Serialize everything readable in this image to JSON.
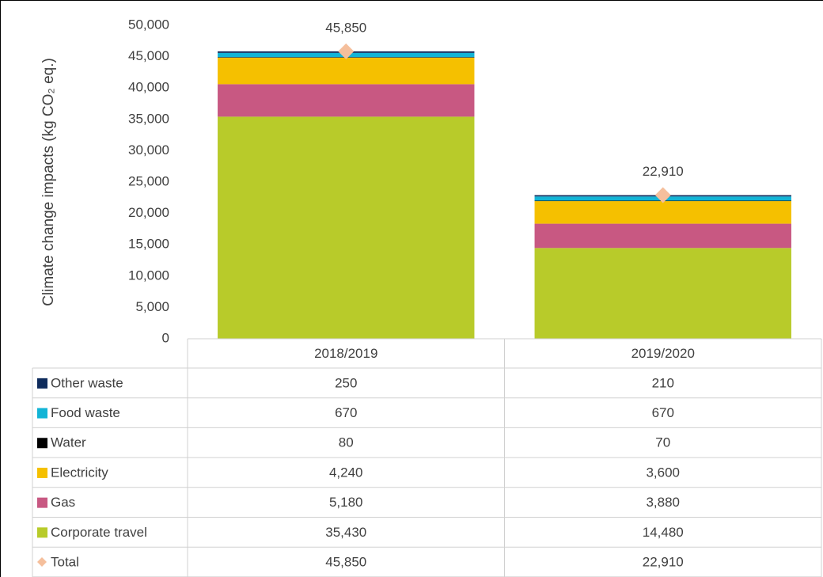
{
  "chart_data": {
    "type": "bar",
    "stacked": true,
    "ylabel": "Climate change impacts (kg CO₂ eq.)",
    "categories": [
      "2018/2019",
      "2019/2020"
    ],
    "series": [
      {
        "name": "Corporate travel",
        "color": "#b8cb2a",
        "values": [
          35430,
          14480
        ],
        "value_labels": [
          "35,430",
          "14,480"
        ]
      },
      {
        "name": "Gas",
        "color": "#c85882",
        "values": [
          5180,
          3880
        ],
        "value_labels": [
          "5,180",
          "3,880"
        ]
      },
      {
        "name": "Electricity",
        "color": "#f5c000",
        "values": [
          4240,
          3600
        ],
        "value_labels": [
          "4,240",
          "3,600"
        ]
      },
      {
        "name": "Water",
        "color": "#000000",
        "values": [
          80,
          70
        ],
        "value_labels": [
          "80",
          "70"
        ]
      },
      {
        "name": "Food waste",
        "color": "#12b4d6",
        "values": [
          670,
          670
        ],
        "value_labels": [
          "670",
          "670"
        ]
      },
      {
        "name": "Other waste",
        "color": "#0e2b5c",
        "values": [
          250,
          210
        ],
        "value_labels": [
          "250",
          "210"
        ]
      }
    ],
    "total": {
      "name": "Total",
      "color": "#f5bf9c",
      "values": [
        45850,
        22910
      ],
      "value_labels": [
        "45,850",
        "22,910"
      ]
    },
    "ylim": [
      0,
      50000
    ],
    "yticks": [
      0,
      {
        "value": 5000,
        "label": "5,000"
      },
      {
        "value": 10000,
        "label": "10,000"
      },
      {
        "value": 15000,
        "label": "15,000"
      },
      {
        "value": 20000,
        "label": "20,000"
      },
      {
        "value": 25000,
        "label": "25,000"
      },
      {
        "value": 30000,
        "label": "30,000"
      },
      {
        "value": 35000,
        "label": "35,000"
      },
      {
        "value": 40000,
        "label": "40,000"
      },
      {
        "value": 45000,
        "label": "45,000"
      },
      {
        "value": 50000,
        "label": "50,000"
      }
    ],
    "grid": false
  }
}
